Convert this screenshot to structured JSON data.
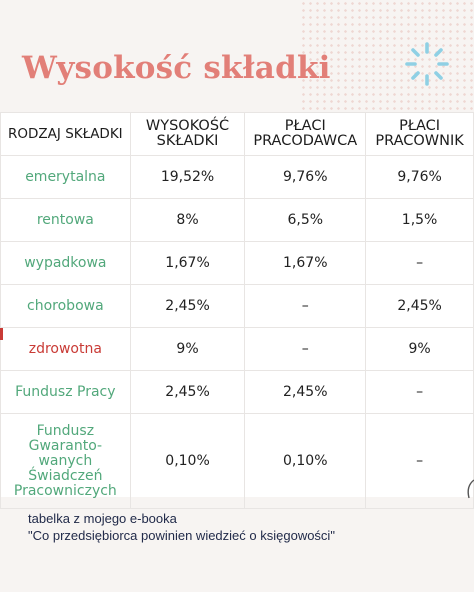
{
  "title": "Wysokość składki",
  "table": {
    "headers": [
      [
        "RODZAJ SKŁADKI"
      ],
      [
        "WYSOKOŚĆ",
        "SKŁADKI"
      ],
      [
        "PŁACI",
        "PRACODAWCA"
      ],
      [
        "PŁACI",
        "PRACOWNIK"
      ]
    ],
    "rows": [
      {
        "name": [
          "emerytalna"
        ],
        "wysokosc": "19,52%",
        "pracodawca": "9,76%",
        "pracownik": "9,76%"
      },
      {
        "name": [
          "rentowa"
        ],
        "wysokosc": "8%",
        "pracodawca": "6,5%",
        "pracownik": "1,5%"
      },
      {
        "name": [
          "wypadkowa"
        ],
        "wysokosc": "1,67%",
        "pracodawca": "1,67%",
        "pracownik": "–"
      },
      {
        "name": [
          "chorobowa"
        ],
        "wysokosc": "2,45%",
        "pracodawca": "–",
        "pracownik": "2,45%"
      },
      {
        "name": [
          "zdrowotna"
        ],
        "wysokosc": "9%",
        "pracodawca": "–",
        "pracownik": "9%"
      },
      {
        "name": [
          "Fundusz Pracy"
        ],
        "wysokosc": "2,45%",
        "pracodawca": "2,45%",
        "pracownik": "–"
      },
      {
        "name": [
          "Fundusz",
          "Gwaranto-",
          "wanych",
          "Świadczeń",
          "Pracowniczych"
        ],
        "wysokosc": "0,10%",
        "pracodawca": "0,10%",
        "pracownik": "–"
      }
    ]
  },
  "footer": {
    "line1": "tabelka z mojego e-booka",
    "line2": "\"Co przedsiębiorca powinien wiedzieć o księgowości\""
  },
  "colors": {
    "title": "#e27f78",
    "name_green": "#52a87b",
    "highlight_red": "#c93b36",
    "spark_blue": "#8fd0e4"
  }
}
